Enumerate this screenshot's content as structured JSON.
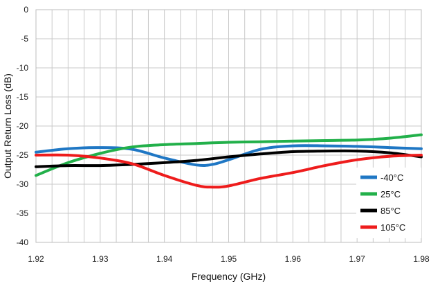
{
  "chart_data": {
    "type": "line",
    "title": "",
    "xlabel": "Frequency (GHz)",
    "ylabel": "Output Return Loss (dB)",
    "xlim": [
      1.92,
      1.98
    ],
    "ylim": [
      -40,
      0
    ],
    "grid": true,
    "legend_position": "bottom-right",
    "x_ticks": [
      "1.92",
      "1.93",
      "1.94",
      "1.95",
      "1.96",
      "1.97",
      "1.98"
    ],
    "y_ticks": [
      "0",
      "-5",
      "-10",
      "-15",
      "-20",
      "-25",
      "-30",
      "-35",
      "-40"
    ],
    "series": [
      {
        "name": "-40°C",
        "color": "#1f77c4",
        "x": [
          1.92,
          1.925,
          1.93,
          1.935,
          1.94,
          1.945,
          1.9475,
          1.95,
          1.955,
          1.96,
          1.965,
          1.97,
          1.975,
          1.98
        ],
        "y": [
          -24.5,
          -23.9,
          -23.7,
          -24.0,
          -25.5,
          -26.7,
          -26.6,
          -25.8,
          -24.0,
          -23.4,
          -23.4,
          -23.5,
          -23.7,
          -23.9
        ]
      },
      {
        "name": "25°C",
        "color": "#22b04a",
        "x": [
          1.92,
          1.925,
          1.93,
          1.935,
          1.94,
          1.945,
          1.95,
          1.955,
          1.96,
          1.965,
          1.97,
          1.975,
          1.98
        ],
        "y": [
          -28.5,
          -26.3,
          -24.7,
          -23.6,
          -23.2,
          -23.0,
          -22.8,
          -22.7,
          -22.6,
          -22.5,
          -22.4,
          -22.1,
          -21.5
        ]
      },
      {
        "name": "85°C",
        "color": "#000000",
        "x": [
          1.92,
          1.925,
          1.93,
          1.935,
          1.94,
          1.945,
          1.95,
          1.955,
          1.96,
          1.965,
          1.97,
          1.975,
          1.98
        ],
        "y": [
          -27.0,
          -26.8,
          -26.8,
          -26.6,
          -26.3,
          -25.9,
          -25.3,
          -24.8,
          -24.4,
          -24.3,
          -24.3,
          -24.6,
          -25.3
        ]
      },
      {
        "name": "105°C",
        "color": "#ee1c1c",
        "x": [
          1.92,
          1.925,
          1.93,
          1.935,
          1.94,
          1.945,
          1.9475,
          1.95,
          1.955,
          1.96,
          1.965,
          1.97,
          1.975,
          1.98
        ],
        "y": [
          -25.0,
          -25.0,
          -25.5,
          -26.5,
          -28.5,
          -30.2,
          -30.5,
          -30.3,
          -29.0,
          -28.0,
          -26.8,
          -25.8,
          -25.2,
          -25.0
        ]
      }
    ]
  }
}
